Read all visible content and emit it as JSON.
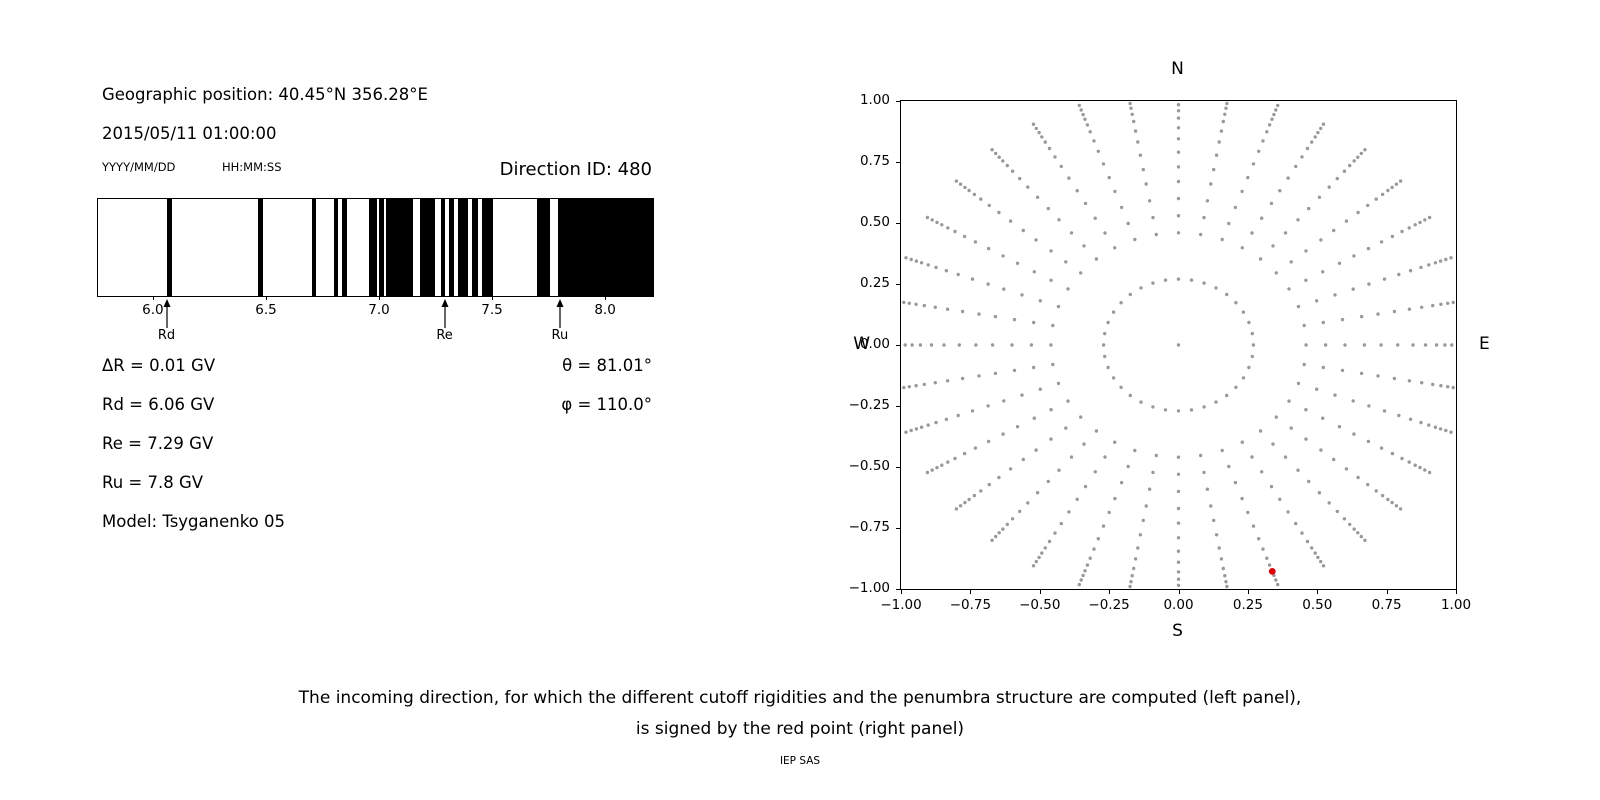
{
  "header": {
    "geographic_position": "Geographic position: 40.45°N 356.28°E",
    "datetime": "2015/05/11 01:00:00",
    "date_format_label": "YYYY/MM/DD",
    "time_format_label": "HH:MM:SS",
    "direction_id": "Direction ID: 480"
  },
  "info": {
    "delta_r": "ΔR = 0.01 GV",
    "rd": "Rd = 6.06 GV",
    "re": "Re = 7.29 GV",
    "ru": "Ru = 7.8 GV",
    "model": "Model: Tsyganenko 05",
    "theta": "θ = 81.01°",
    "phi": "φ = 110.0°"
  },
  "caption": {
    "line1": "The incoming direction, for which the different cutoff rigidities and the penumbra structure are computed (left panel),",
    "line2": "is signed by the red point (right panel)",
    "footer": "IEP SAS"
  },
  "chart_data": [
    {
      "type": "bar",
      "subtype": "penumbra-barcode",
      "xlim": [
        5.757,
        8.212
      ],
      "xticks": [
        6.0,
        6.5,
        7.0,
        7.5,
        8.0
      ],
      "xtick_labels": [
        "6.0",
        "6.5",
        "7.0",
        "7.5",
        "8.0"
      ],
      "bar_color": "#000000",
      "allowed_bands_gv": [
        [
          6.062,
          6.082
        ],
        [
          6.465,
          6.485
        ],
        [
          6.704,
          6.722
        ],
        [
          6.8,
          6.82
        ],
        [
          6.837,
          6.86
        ],
        [
          6.956,
          6.992
        ],
        [
          7.0,
          7.022
        ],
        [
          7.032,
          7.151
        ],
        [
          7.182,
          7.248
        ],
        [
          7.275,
          7.294
        ],
        [
          7.31,
          7.332
        ],
        [
          7.35,
          7.394
        ],
        [
          7.412,
          7.438
        ],
        [
          7.456,
          7.505
        ],
        [
          7.7,
          7.757
        ],
        [
          7.792,
          8.215
        ]
      ],
      "markers": [
        {
          "label": "Rd",
          "value_gv": 6.06
        },
        {
          "label": "Re",
          "value_gv": 7.29
        },
        {
          "label": "Ru",
          "value_gv": 7.8
        }
      ]
    },
    {
      "type": "scatter",
      "xlim": [
        -1.0,
        1.0
      ],
      "ylim": [
        -1.0,
        1.0
      ],
      "xticks": [
        -1.0,
        -0.75,
        -0.5,
        -0.25,
        0.0,
        0.25,
        0.5,
        0.75,
        1.0
      ],
      "tick_labels": [
        "−1.00",
        "−0.75",
        "−0.50",
        "−0.25",
        "0.00",
        "0.25",
        "0.50",
        "0.75",
        "1.00"
      ],
      "compass": {
        "top": "N",
        "bottom": "S",
        "left": "W",
        "right": "E"
      },
      "dot_color": "#999999",
      "grid": {
        "center_dot": true,
        "inner_ring_radius": 0.27,
        "inner_ring_azimuth_step_deg": 10,
        "azimuth_step_deg": 10,
        "spoke_radii": [
          0.46,
          0.53,
          0.6,
          0.67,
          0.73,
          0.79,
          0.845,
          0.89,
          0.93,
          0.96,
          0.985,
          1.005,
          1.025,
          1.045
        ]
      },
      "red_point": {
        "x": 0.338,
        "y": -0.928,
        "color": "#e50000"
      }
    }
  ]
}
